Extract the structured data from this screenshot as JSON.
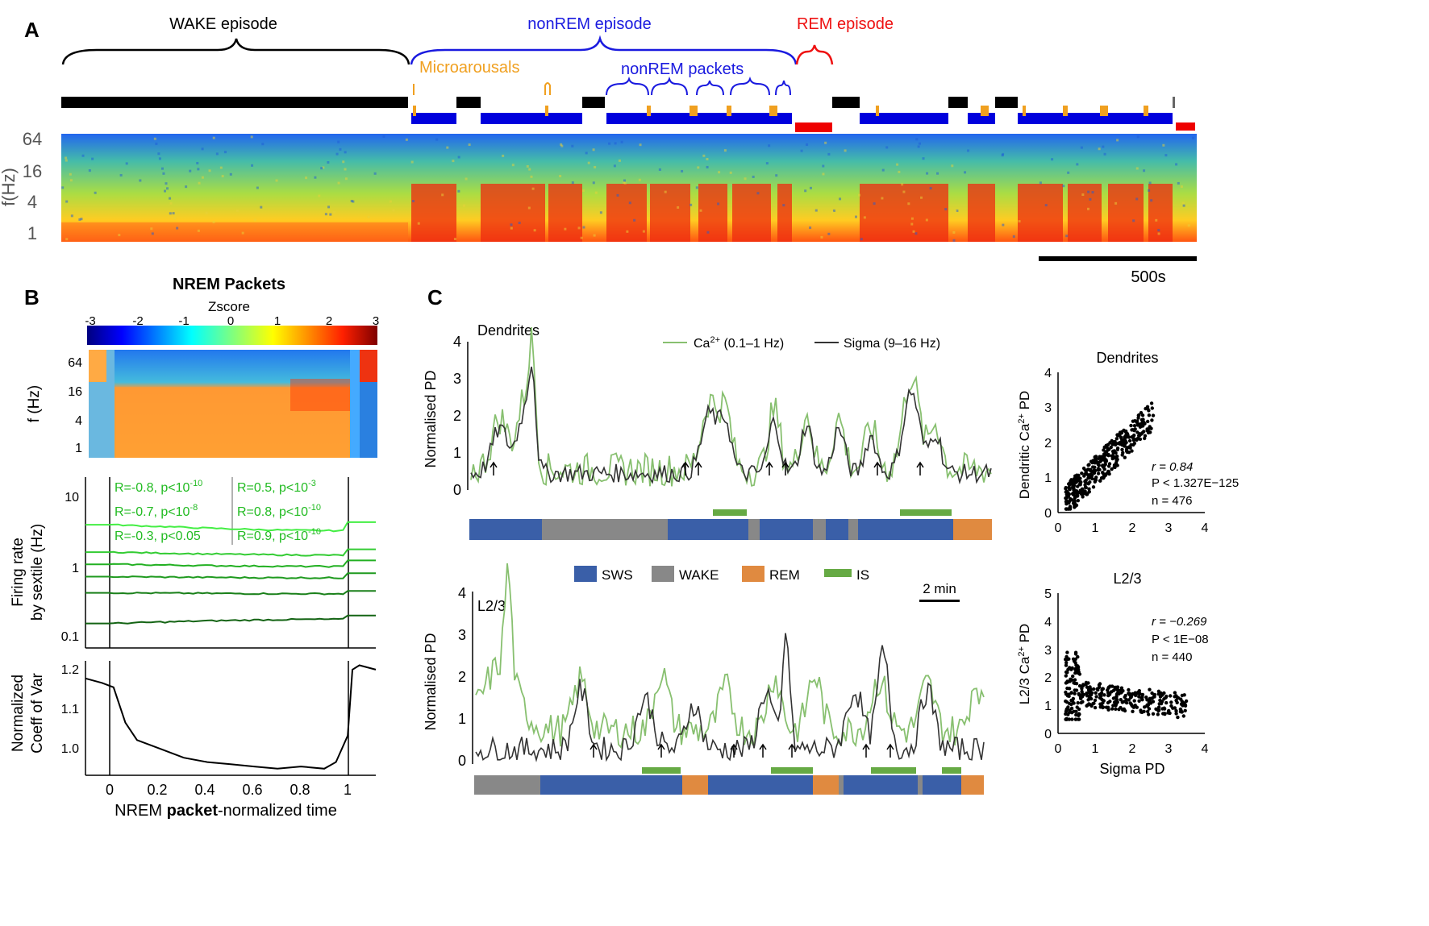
{
  "panel_a": {
    "letter": "A",
    "brace_wake": "WAKE episode",
    "brace_nonrem": "nonREM episode",
    "brace_rem": "REM episode",
    "microarousals": "Microarousals",
    "nonrem_packets": "nonREM packets",
    "y_ticks": [
      "64",
      "16",
      "4",
      "1"
    ],
    "y_label": "f(Hz)",
    "scalebar": "500s"
  },
  "panel_b": {
    "letter": "B",
    "title": "NREM Packets",
    "colorbar_label": "Zscore",
    "colorbar_ticks": [
      "-3",
      "-2",
      "-1",
      "0",
      "1",
      "2",
      "3"
    ],
    "spec_ylabel": "f (Hz)",
    "spec_ticks": [
      "64",
      "16",
      "4",
      "1"
    ],
    "fr_ylabel1": "Firing rate",
    "fr_ylabel2": "by sextile (Hz)",
    "fr_ticks": [
      "10",
      "1",
      "0.1"
    ],
    "stats_left": [
      "R=-0.8, p<10",
      "R=-0.7, p<10",
      "R=-0.3, p<0.05"
    ],
    "stats_left_exp": [
      "-10",
      "-8",
      ""
    ],
    "stats_right": [
      "R=0.5, p<10",
      "R=0.8, p<10",
      "R=0.9, p<10"
    ],
    "stats_right_exp": [
      "-3",
      "-10",
      "-10"
    ],
    "cv_ylabel1": "Normalized",
    "cv_ylabel2": "Coeff of Var",
    "cv_ticks": [
      "1.2",
      "1.1",
      "1.0"
    ],
    "x_ticks": [
      "0",
      "0.2",
      "0.4",
      "0.6",
      "0.8",
      "1"
    ],
    "xlabel_pre": "NREM ",
    "xlabel_bold": "packet",
    "xlabel_post": "-normalized time"
  },
  "panel_c": {
    "letter": "C",
    "top_title": "Dendrites",
    "bottom_title": "L2/3",
    "ylabel": "Normalised PD",
    "y_ticks": [
      "4",
      "3",
      "2",
      "1",
      "0"
    ],
    "legend_ca": "Ca",
    "legend_ca_sup": "2+",
    "legend_ca_rest": " (0.1–1 Hz)",
    "legend_sigma": "Sigma (9–16 Hz)",
    "state_legend": [
      "SWS",
      "WAKE",
      "REM",
      "IS"
    ],
    "scale_label": "2 min",
    "scatter_top_title": "Dendrites",
    "scatter_top_ylabel_pre": "Dendritic Ca",
    "scatter_top_ylabel_sup": "2+",
    "scatter_top_ylabel_post": " PD",
    "scatter_top_stats": [
      "r = 0.84",
      "P < 1.327E−125",
      "n = 476"
    ],
    "scatter_bottom_title": "L2/3",
    "scatter_bottom_ylabel_pre": "L2/3 Ca",
    "scatter_bottom_ylabel_sup": "2+",
    "scatter_bottom_ylabel_post": " PD",
    "scatter_bottom_stats": [
      "r = −0.269",
      "P < 1E−08",
      "n = 440"
    ],
    "scatter_xlabel": "Sigma PD",
    "scatter_x_ticks": [
      "0",
      "1",
      "2",
      "3",
      "4"
    ],
    "scatter_top_y_ticks": [
      "4",
      "3",
      "2",
      "1",
      "0"
    ],
    "scatter_bottom_y_ticks": [
      "5",
      "4",
      "3",
      "2",
      "1",
      "0"
    ]
  },
  "colors": {
    "wake": "#000000",
    "nrem": "#0000dd",
    "rem": "#ee0000",
    "micro": "#f0a020",
    "sws": "#3a5fa8",
    "wake_c": "#888888",
    "rem_c": "#e08a40",
    "is_c": "#66aa44",
    "ca": "#88c070",
    "sigma": "#333333",
    "fr": "#22bb22"
  },
  "chart_data": [
    {
      "id": "A-hypnogram",
      "type": "table",
      "states_sequence": [
        "WAKE",
        "nonREM",
        "WAKE",
        "nonREM",
        "WAKE",
        "nonREM",
        "REM",
        "WAKE",
        "nonREM",
        "WAKE",
        "nonREM",
        "WAKE",
        "nonREM",
        "REM"
      ]
    },
    {
      "id": "B-firing-rate",
      "type": "line",
      "x_label": "NREM packet-normalized time",
      "xlim": [
        -0.12,
        1.12
      ],
      "ylim_log": [
        0.08,
        10
      ],
      "series": [
        {
          "start": 2.6,
          "mid": 2.2,
          "end": 2.8
        },
        {
          "start": 1.2,
          "mid": 1.1,
          "end": 1.3
        },
        {
          "start": 0.85,
          "mid": 0.8,
          "end": 0.95
        },
        {
          "start": 0.6,
          "mid": 0.58,
          "end": 0.66
        },
        {
          "start": 0.38,
          "mid": 0.37,
          "end": 0.4
        },
        {
          "start": 0.16,
          "mid": 0.18,
          "end": 0.2
        }
      ]
    },
    {
      "id": "B-cv",
      "type": "line",
      "xlim": [
        -0.12,
        1.12
      ],
      "ylim": [
        0.96,
        1.22
      ],
      "x": [
        -0.12,
        -0.05,
        0,
        0.05,
        0.1,
        0.2,
        0.3,
        0.4,
        0.5,
        0.6,
        0.7,
        0.8,
        0.9,
        0.95,
        1.0,
        1.02,
        1.05,
        1.12
      ],
      "y": [
        1.18,
        1.17,
        1.16,
        1.08,
        1.04,
        1.02,
        1.0,
        0.99,
        0.985,
        0.98,
        0.975,
        0.98,
        0.975,
        0.99,
        1.05,
        1.2,
        1.21,
        1.2
      ]
    },
    {
      "id": "C-scatter-dendrites",
      "type": "scatter",
      "xlabel": "",
      "ylabel": "Dendritic Ca2+ PD",
      "xlim": [
        0,
        4
      ],
      "ylim": [
        0,
        4
      ],
      "r": 0.84,
      "n": 476
    },
    {
      "id": "C-scatter-L23",
      "type": "scatter",
      "xlabel": "Sigma PD",
      "ylabel": "L2/3 Ca2+ PD",
      "xlim": [
        0,
        4
      ],
      "ylim": [
        0,
        5
      ],
      "r": -0.269,
      "n": 440
    }
  ]
}
